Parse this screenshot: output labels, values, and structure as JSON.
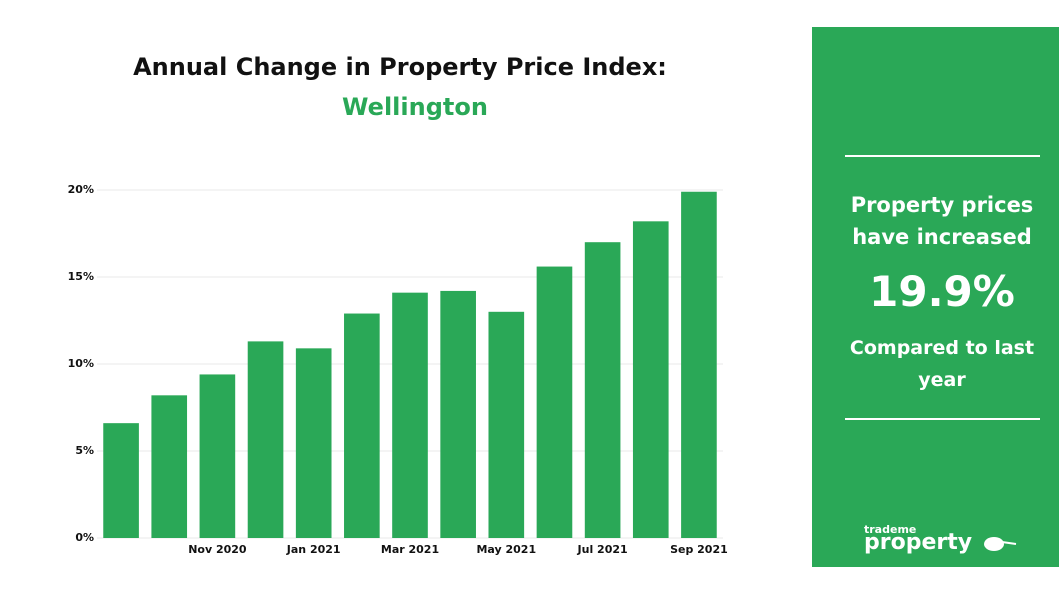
{
  "chart_data": {
    "type": "bar",
    "title": "Annual Change in Property Price Index:",
    "subtitle": "Wellington",
    "categories": [
      null,
      null,
      "Nov 2020",
      null,
      "Jan 2021",
      null,
      "Mar 2021",
      null,
      "May 2021",
      null,
      "Jul 2021",
      null,
      "Sep 2021"
    ],
    "values": [
      6.6,
      8.2,
      9.4,
      11.3,
      10.9,
      12.9,
      14.1,
      14.2,
      13.0,
      15.6,
      17.0,
      18.2,
      19.9
    ],
    "color": "#2aa857",
    "ylim": [
      0,
      20
    ],
    "yticks": [
      {
        "value": 0,
        "label": "0%"
      },
      {
        "value": 5,
        "label": "5%"
      },
      {
        "value": 10,
        "label": "10%"
      },
      {
        "value": 15,
        "label": "15%"
      },
      {
        "value": 20,
        "label": "20%"
      }
    ],
    "grid": true
  },
  "panel": {
    "heading": "Property prices have increased",
    "figure": "19.9%",
    "footer": "Compared to last year",
    "logo": {
      "small": "trademe",
      "large": "property"
    }
  }
}
